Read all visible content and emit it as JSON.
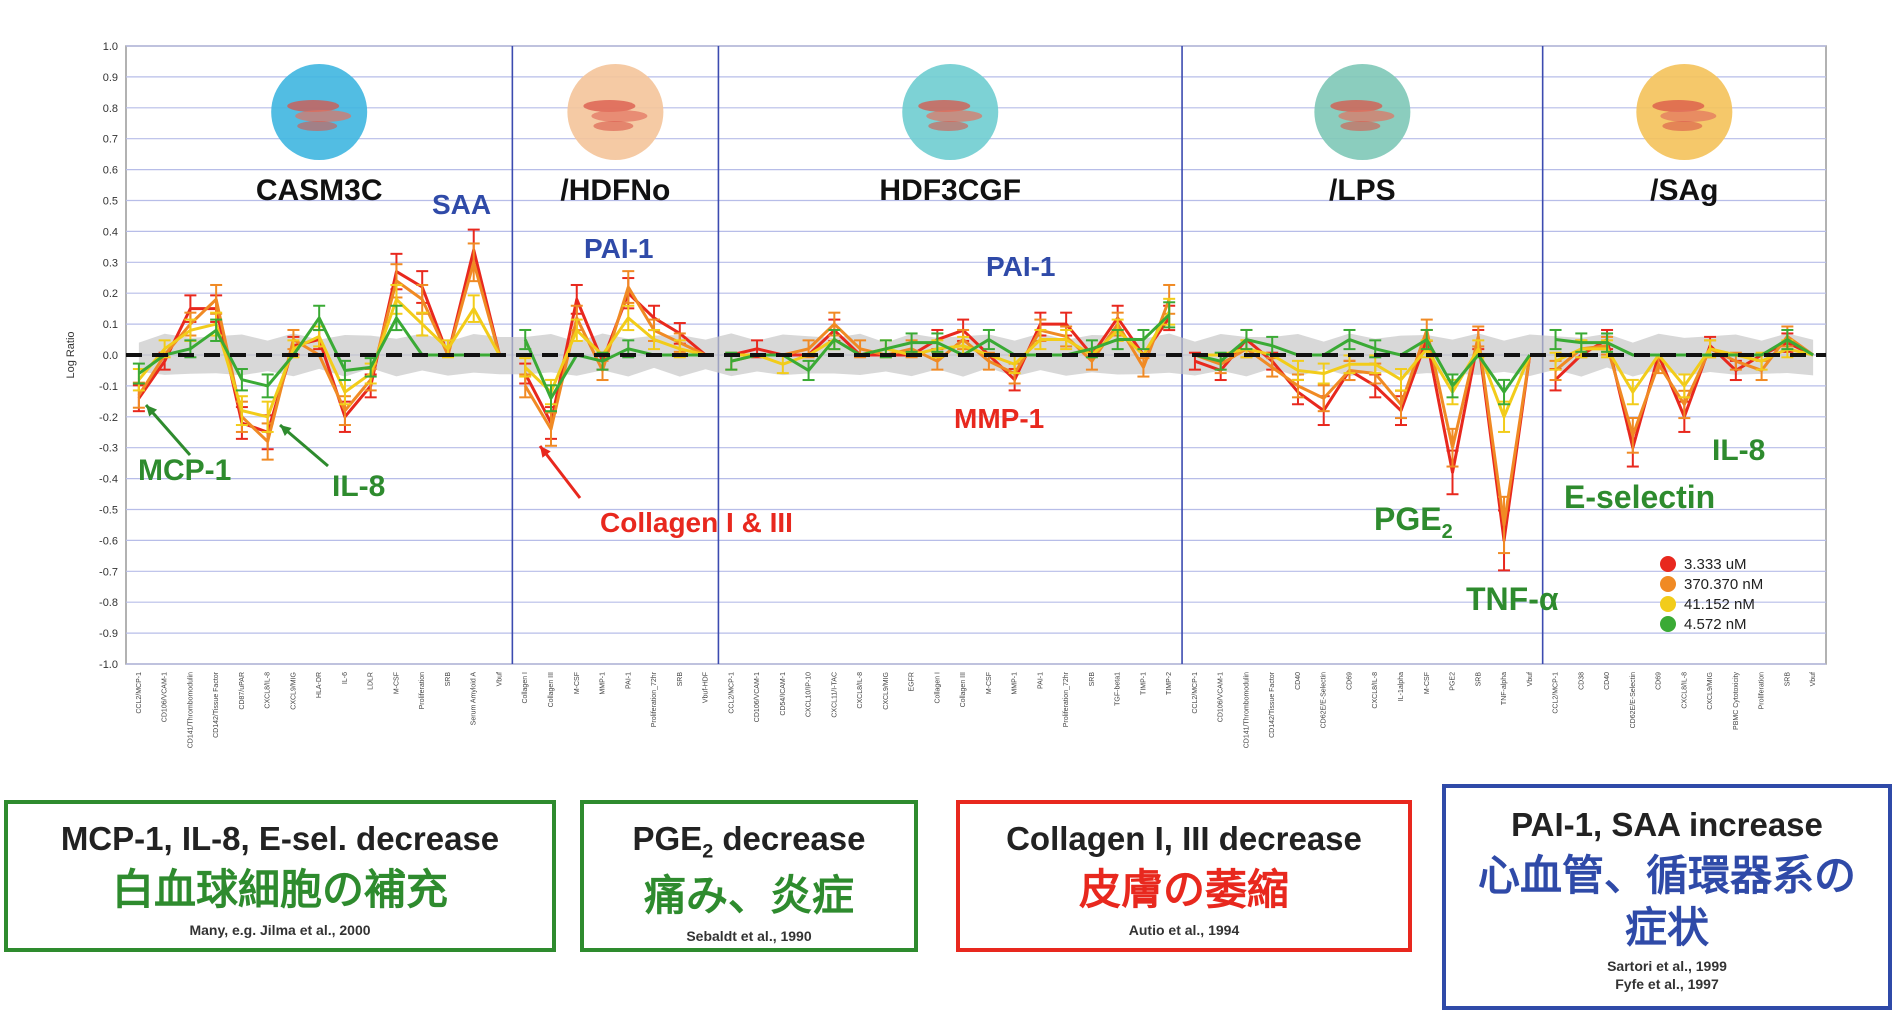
{
  "chart_data": {
    "type": "line",
    "ylabel": "Log Ratio",
    "ylim": [
      -1.0,
      1.0
    ],
    "yticks": [
      "-1.0",
      "-0.9",
      "-0.8",
      "-0.7",
      "-0.6",
      "-0.5",
      "-0.4",
      "-0.3",
      "-0.2",
      "-0.1",
      "0.0",
      "0.1",
      "0.2",
      "0.3",
      "0.4",
      "0.5",
      "0.6",
      "0.7",
      "0.8",
      "0.9",
      "1.0"
    ],
    "grid": true,
    "legend_position": "bottom-right",
    "panels": [
      {
        "title": "CASM3C",
        "color": "#3fb6e0",
        "xticks": [
          "CCL2/MCP-1",
          "CD106/VCAM-1",
          "CD141/Thrombomodulin",
          "CD142/Tissue Factor",
          "CD87/uPAR",
          "CXCL8/IL-8",
          "CXCL9/MIG",
          "HLA-DR",
          "IL-6",
          "LDLR",
          "M-CSF",
          "Proliferation",
          "SRB",
          "Serum Amyloid A",
          "Vbuf"
        ]
      },
      {
        "title": "/HDFNo",
        "color": "#f4c49a",
        "xticks": [
          "Collagen I",
          "Collagen III",
          "M-CSF",
          "MMP-1",
          "PAI-1",
          "Proliferation_72hr",
          "SRB",
          "Vbuf-HDF"
        ]
      },
      {
        "title": "HDF3CGF",
        "color": "#6fcdd0",
        "xticks": [
          "CCL2/MCP-1",
          "CD106/VCAM-1",
          "CD54/ICAM-1",
          "CXCL10/IP-10",
          "CXCL11/I-TAC",
          "CXCL8/IL-8",
          "CXCL9/MIG",
          "EGFR",
          "Collagen I",
          "Collagen III",
          "M-CSF",
          "MMP-1",
          "PAI-1",
          "Proliferation_72hr",
          "SRB",
          "TGF-beta1",
          "TIMP-1",
          "TIMP-2"
        ]
      },
      {
        "title": "/LPS",
        "color": "#7ec8b7",
        "xticks": [
          "CCL2/MCP-1",
          "CD106/VCAM-1",
          "CD141/Thrombomodulin",
          "CD142/Tissue Factor",
          "CD40",
          "CD62E/E-Selectin",
          "CD69",
          "CXCL8/IL-8",
          "IL-1alpha",
          "M-CSF",
          "PGE2",
          "SRB",
          "TNF-alpha",
          "Vbuf"
        ]
      },
      {
        "title": "/SAg",
        "color": "#f4c25a",
        "xticks": [
          "CCL2/MCP-1",
          "CD38",
          "CD40",
          "CD62E/E-Selectin",
          "CD69",
          "CXCL8/IL-8",
          "CXCL9/MIG",
          "PBMC Cytotoxicity",
          "Proliferation",
          "SRB",
          "Vbuf"
        ]
      }
    ],
    "series": [
      {
        "name": "3.333 uM",
        "color": "#e8281e",
        "values": [
          -0.14,
          -0.02,
          0.15,
          0.15,
          -0.22,
          -0.25,
          0.03,
          0.05,
          -0.2,
          -0.1,
          0.27,
          0.22,
          0.0,
          0.34,
          0.0,
          -0.06,
          -0.22,
          0.18,
          -0.02,
          0.2,
          0.12,
          0.07,
          0.0,
          0.0,
          0.02,
          0.0,
          0.0,
          0.08,
          0.0,
          0.0,
          0.0,
          0.05,
          0.08,
          0.0,
          -0.08,
          0.1,
          0.1,
          0.0,
          0.12,
          0.0,
          0.12,
          -0.02,
          -0.05,
          0.05,
          -0.02,
          -0.12,
          -0.18,
          -0.05,
          -0.1,
          -0.18,
          0.05,
          -0.38,
          0.05,
          -0.6,
          0.0,
          -0.08,
          0.0,
          0.05,
          -0.3,
          0.0,
          -0.2,
          0.03,
          -0.05,
          0.0,
          0.04,
          0.0
        ]
      },
      {
        "name": "370.370 nM",
        "color": "#f08a24",
        "values": [
          -0.13,
          0.0,
          0.1,
          0.18,
          -0.2,
          -0.28,
          0.05,
          0.0,
          -0.18,
          -0.08,
          0.24,
          0.18,
          0.0,
          0.3,
          0.0,
          -0.1,
          -0.24,
          0.12,
          -0.05,
          0.22,
          0.08,
          0.04,
          0.0,
          -0.02,
          0.0,
          0.0,
          0.02,
          0.1,
          0.02,
          0.0,
          0.02,
          -0.02,
          0.05,
          -0.02,
          -0.06,
          0.08,
          0.06,
          -0.02,
          0.1,
          -0.04,
          0.18,
          0.0,
          -0.03,
          0.02,
          -0.04,
          -0.1,
          -0.14,
          -0.05,
          -0.06,
          -0.16,
          0.08,
          -0.3,
          0.06,
          -0.55,
          0.0,
          -0.05,
          0.02,
          0.03,
          -0.26,
          -0.03,
          -0.16,
          0.02,
          -0.02,
          -0.05,
          0.06,
          0.0
        ]
      },
      {
        "name": "41.152 nM",
        "color": "#f2cc1a",
        "values": [
          -0.08,
          0.02,
          0.08,
          0.1,
          -0.18,
          -0.2,
          0.02,
          0.06,
          -0.12,
          -0.06,
          0.18,
          0.1,
          0.02,
          0.15,
          0.0,
          -0.04,
          -0.12,
          0.08,
          0.0,
          0.12,
          0.05,
          0.02,
          0.0,
          0.0,
          0.0,
          -0.03,
          0.0,
          0.05,
          0.0,
          0.02,
          0.0,
          0.02,
          0.03,
          0.0,
          -0.03,
          0.05,
          0.05,
          0.0,
          0.08,
          0.0,
          0.14,
          0.0,
          0.0,
          0.02,
          0.0,
          -0.05,
          -0.06,
          -0.03,
          -0.03,
          -0.08,
          0.02,
          -0.12,
          0.02,
          -0.2,
          0.0,
          -0.02,
          0.02,
          0.02,
          -0.12,
          0.0,
          -0.1,
          0.02,
          0.0,
          -0.02,
          0.02,
          0.0
        ]
      },
      {
        "name": "4.572 nM",
        "color": "#3aaa35",
        "values": [
          -0.06,
          0.0,
          0.02,
          0.08,
          -0.08,
          -0.1,
          0.0,
          0.12,
          -0.05,
          -0.04,
          0.12,
          0.0,
          0.0,
          0.0,
          0.0,
          0.05,
          -0.14,
          0.0,
          -0.02,
          0.02,
          0.0,
          0.0,
          0.0,
          -0.02,
          0.0,
          0.0,
          -0.05,
          0.05,
          0.0,
          0.02,
          0.04,
          0.04,
          0.0,
          0.05,
          0.0,
          0.0,
          0.0,
          0.02,
          0.05,
          0.05,
          0.13,
          0.0,
          -0.02,
          0.05,
          0.03,
          0.0,
          0.0,
          0.05,
          0.02,
          0.0,
          0.05,
          -0.1,
          0.0,
          -0.12,
          0.0,
          0.05,
          0.04,
          0.04,
          0.0,
          0.0,
          0.0,
          0.0,
          0.0,
          0.0,
          0.05,
          0.0
        ]
      }
    ],
    "annotations": [
      {
        "text": "MCP-1",
        "color": "#2e8b2e",
        "arrow": true
      },
      {
        "text": "IL-8",
        "color": "#2e8b2e",
        "arrow": true
      },
      {
        "text": "SAA",
        "color": "#2f4aa8",
        "arrow": false
      },
      {
        "text": "PAI-1",
        "color": "#2f4aa8",
        "arrow": false
      },
      {
        "text": "Collagen I & III",
        "color": "#e8281e",
        "arrow": true
      },
      {
        "text": "PAI-1",
        "color": "#2f4aa8",
        "arrow": false
      },
      {
        "text": "MMP-1",
        "color": "#e8281e",
        "arrow": false
      },
      {
        "text": "PGE2",
        "color": "#2e8b2e",
        "arrow": false
      },
      {
        "text": "TNF-α",
        "color": "#2e8b2e",
        "arrow": false
      },
      {
        "text": "E-selectin",
        "color": "#2e8b2e",
        "arrow": false
      },
      {
        "text": "IL-8",
        "color": "#2e8b2e",
        "arrow": false
      }
    ]
  },
  "boxes": [
    {
      "headline": "MCP-1, IL-8, E-sel. decrease",
      "jp": "白血球細胞の補充",
      "refs": [
        "Many, e.g. Jilma et al., 2000"
      ],
      "color": "#2e8b2e"
    },
    {
      "headline_main": "PGE",
      "headline_sub": "2",
      "headline_rest": " decrease",
      "jp": "痛み、炎症",
      "refs": [
        "Sebaldt et al., 1990"
      ],
      "color": "#2e8b2e"
    },
    {
      "headline": "Collagen I, III decrease",
      "jp": "皮膚の萎縮",
      "refs": [
        "Autio et al., 1994"
      ],
      "color": "#e8281e"
    },
    {
      "headline": "PAI-1, SAA increase",
      "jp": "心血管、循環器系の症状",
      "refs": [
        "Sartori et al., 1999",
        "Fyfe et al., 1997"
      ],
      "color": "#2f4aa8"
    }
  ]
}
